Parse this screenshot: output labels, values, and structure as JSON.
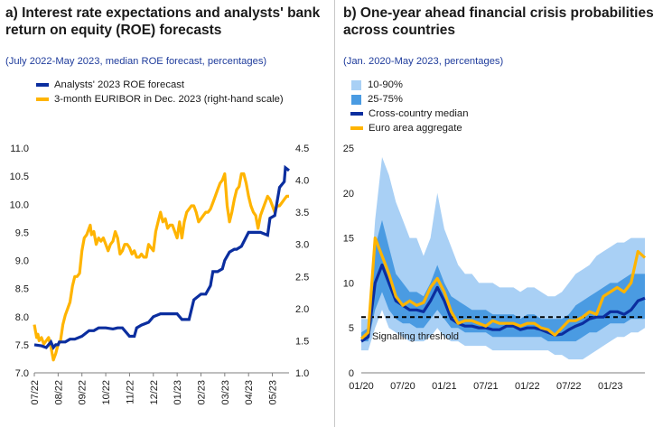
{
  "colors": {
    "dark_blue": "#0b2e9f",
    "yellow": "#ffb400",
    "band_outer": "#a9d0f5",
    "band_inner": "#4a9be2",
    "threshold": "#000000"
  },
  "chart_data": [
    {
      "type": "line",
      "panel_title": "a) Interest rate expectations and analysts' bank return on equity (ROE) forecasts",
      "subtitle": "(July 2022-May 2023, median ROE forecast, percentages)",
      "x_tick_labels": [
        "07/22",
        "08/22",
        "09/22",
        "10/22",
        "11/22",
        "12/22",
        "01/23",
        "02/23",
        "03/23",
        "04/23",
        "05/23"
      ],
      "y_left": {
        "ylim": [
          7.0,
          11.0
        ],
        "ticks": [
          "7.0",
          "7.5",
          "8.0",
          "8.5",
          "9.0",
          "9.5",
          "10.0",
          "10.5",
          "11.0"
        ]
      },
      "y_right": {
        "ylim": [
          1.0,
          4.5
        ],
        "ticks": [
          "1.0",
          "1.5",
          "2.0",
          "2.5",
          "3.0",
          "3.5",
          "4.0",
          "4.5"
        ]
      },
      "legend": [
        {
          "label": "Analysts' 2023 ROE forecast",
          "color": "#0b2e9f"
        },
        {
          "label": "3-month EURIBOR in Dec. 2023 (right-hand scale)",
          "color": "#ffb400"
        }
      ],
      "series": [
        {
          "name": "Analysts' 2023 ROE forecast",
          "axis": "left",
          "x": [
            0,
            0.3,
            0.5,
            0.7,
            0.8,
            0.9,
            1.0,
            1.05,
            1.3,
            1.5,
            1.7,
            2.0,
            2.3,
            2.5,
            2.7,
            3.0,
            3.3,
            3.5,
            3.7,
            4.0,
            4.2,
            4.3,
            4.5,
            4.8,
            5.0,
            5.3,
            5.5,
            5.7,
            6.0,
            6.2,
            6.5,
            6.7,
            7.0,
            7.2,
            7.4,
            7.5,
            7.7,
            7.9,
            8.0,
            8.2,
            8.4,
            8.5,
            8.7,
            9.0,
            9.3,
            9.5,
            9.8,
            9.9,
            10.1,
            10.3,
            10.5,
            10.55,
            10.7
          ],
          "values": [
            7.5,
            7.48,
            7.45,
            7.55,
            7.45,
            7.5,
            7.5,
            7.55,
            7.55,
            7.6,
            7.6,
            7.65,
            7.75,
            7.75,
            7.8,
            7.8,
            7.78,
            7.8,
            7.8,
            7.65,
            7.65,
            7.8,
            7.85,
            7.9,
            8.0,
            8.05,
            8.05,
            8.05,
            8.05,
            7.95,
            7.95,
            8.3,
            8.4,
            8.4,
            8.55,
            8.8,
            8.8,
            8.85,
            9.0,
            9.15,
            9.2,
            9.2,
            9.25,
            9.5,
            9.5,
            9.5,
            9.45,
            9.75,
            9.8,
            10.3,
            10.4,
            10.65,
            10.6
          ]
        },
        {
          "name": "3-month EURIBOR in Dec. 2023 (right-hand scale)",
          "axis": "right",
          "x": [
            0,
            0.05,
            0.1,
            0.15,
            0.2,
            0.3,
            0.4,
            0.5,
            0.6,
            0.7,
            0.8,
            0.85,
            0.9,
            1.0,
            1.1,
            1.2,
            1.3,
            1.4,
            1.5,
            1.6,
            1.7,
            1.8,
            1.9,
            2.0,
            2.1,
            2.2,
            2.3,
            2.35,
            2.4,
            2.5,
            2.6,
            2.7,
            2.8,
            2.9,
            3.0,
            3.1,
            3.2,
            3.3,
            3.4,
            3.5,
            3.6,
            3.7,
            3.8,
            3.9,
            4.0,
            4.1,
            4.2,
            4.3,
            4.4,
            4.5,
            4.6,
            4.7,
            4.8,
            4.9,
            5.0,
            5.1,
            5.2,
            5.3,
            5.4,
            5.5,
            5.6,
            5.7,
            5.8,
            5.9,
            6.0,
            6.1,
            6.2,
            6.3,
            6.4,
            6.5,
            6.6,
            6.7,
            6.8,
            6.9,
            7.0,
            7.1,
            7.2,
            7.3,
            7.4,
            7.5,
            7.6,
            7.7,
            7.8,
            7.9,
            8.0,
            8.1,
            8.2,
            8.3,
            8.4,
            8.5,
            8.6,
            8.7,
            8.8,
            8.9,
            9.0,
            9.1,
            9.2,
            9.3,
            9.4,
            9.5,
            9.6,
            9.7,
            9.8,
            9.9,
            10.0,
            10.1,
            10.2,
            10.3,
            10.4,
            10.5,
            10.6,
            10.7
          ],
          "values": [
            1.75,
            1.65,
            1.55,
            1.6,
            1.5,
            1.55,
            1.45,
            1.5,
            1.55,
            1.4,
            1.2,
            1.25,
            1.3,
            1.45,
            1.5,
            1.75,
            1.9,
            2.0,
            2.1,
            2.35,
            2.5,
            2.5,
            2.55,
            2.9,
            3.1,
            3.15,
            3.25,
            3.3,
            3.15,
            3.2,
            3.0,
            3.1,
            3.05,
            3.1,
            3.0,
            2.9,
            3.0,
            3.05,
            3.2,
            3.1,
            2.85,
            2.9,
            3.0,
            3.0,
            2.95,
            2.85,
            2.9,
            2.8,
            2.8,
            2.85,
            2.8,
            2.8,
            3.0,
            2.95,
            2.9,
            3.2,
            3.35,
            3.5,
            3.35,
            3.4,
            3.25,
            3.3,
            3.3,
            3.2,
            3.1,
            3.35,
            3.1,
            3.35,
            3.5,
            3.55,
            3.6,
            3.6,
            3.5,
            3.35,
            3.4,
            3.45,
            3.5,
            3.5,
            3.55,
            3.65,
            3.75,
            3.85,
            3.95,
            4.0,
            4.1,
            3.6,
            3.35,
            3.5,
            3.7,
            3.85,
            3.9,
            4.1,
            4.1,
            3.95,
            3.75,
            3.6,
            3.5,
            3.45,
            3.25,
            3.45,
            3.55,
            3.65,
            3.75,
            3.7,
            3.6,
            3.5,
            3.6,
            3.6,
            3.65,
            3.7,
            3.75,
            3.75
          ]
        }
      ]
    },
    {
      "type": "area",
      "panel_title": "b) One-year ahead financial crisis probabilities across countries",
      "subtitle": "(Jan. 2020-May 2023, percentages)",
      "x_tick_labels": [
        "01/20",
        "07/20",
        "01/21",
        "07/21",
        "01/22",
        "07/22",
        "01/23"
      ],
      "ylim": [
        0,
        25
      ],
      "y_ticks": [
        "0",
        "5",
        "10",
        "15",
        "20",
        "25"
      ],
      "legend": [
        {
          "label": "10-90%",
          "color": "#a9d0f5",
          "kind": "box"
        },
        {
          "label": "25-75%",
          "color": "#4a9be2",
          "kind": "box"
        },
        {
          "label": "Cross-country median",
          "color": "#0b2e9f",
          "kind": "line"
        },
        {
          "label": "Euro area aggregate",
          "color": "#ffb400",
          "kind": "line"
        }
      ],
      "threshold": {
        "label": "Signalling threshold",
        "value": 6.2
      },
      "x_months": [
        0,
        1,
        2,
        3,
        4,
        5,
        6,
        7,
        8,
        9,
        10,
        11,
        12,
        13,
        14,
        15,
        16,
        17,
        18,
        19,
        20,
        21,
        22,
        23,
        24,
        25,
        26,
        27,
        28,
        29,
        30,
        31,
        32,
        33,
        34,
        35,
        36,
        37,
        38,
        39,
        40,
        41
      ],
      "band_10_90_low": [
        2.5,
        2.5,
        5,
        7,
        5,
        4.5,
        4,
        3.5,
        3.5,
        3.5,
        4,
        5,
        4,
        3.5,
        3.5,
        3,
        3,
        3,
        3,
        2.5,
        2.5,
        2.5,
        2.5,
        2.5,
        2.5,
        2.5,
        2.5,
        2.5,
        2,
        2,
        1.5,
        1.5,
        1.5,
        2,
        2.5,
        3,
        3.5,
        4,
        4,
        4.5,
        4.5,
        5
      ],
      "band_10_90_high": [
        6,
        6,
        17,
        24,
        22,
        19,
        17,
        15,
        15,
        13,
        15,
        20,
        16,
        14,
        12,
        11,
        11,
        10,
        10,
        10,
        9.5,
        9.5,
        9.5,
        9,
        9.5,
        9.5,
        9,
        8.5,
        8.5,
        9,
        10,
        11,
        11.5,
        12,
        13,
        13.5,
        14,
        14.5,
        14.5,
        15,
        15,
        15
      ],
      "band_25_75_low": [
        3.5,
        3.5,
        7,
        9,
        7,
        6,
        5.5,
        5.5,
        5,
        5,
        6,
        7,
        6,
        5,
        5,
        4.5,
        4.5,
        4.5,
        4.5,
        4,
        4,
        4,
        4,
        4,
        4,
        4,
        4,
        3.5,
        3.5,
        3.5,
        3.5,
        3.5,
        4,
        4.5,
        4.5,
        5,
        5.5,
        5.5,
        5.5,
        6,
        6,
        6
      ],
      "band_25_75_high": [
        4.5,
        5,
        14,
        17,
        14,
        11,
        10,
        9,
        9,
        8.5,
        10,
        12,
        10,
        8.5,
        8,
        7.5,
        7,
        7,
        7,
        6.5,
        6.5,
        6.5,
        6.5,
        6,
        6.5,
        6.5,
        6,
        6,
        6,
        6,
        6.5,
        7.5,
        8,
        8.5,
        9,
        9.5,
        10,
        10,
        10.5,
        11,
        11,
        11
      ],
      "series": [
        {
          "name": "Cross-country median",
          "values": [
            3.5,
            4,
            10,
            12,
            10,
            8,
            7.5,
            7,
            7,
            6.8,
            8,
            9.5,
            8,
            6,
            5.5,
            5.2,
            5.2,
            5,
            5,
            4.8,
            4.8,
            5.2,
            5.2,
            4.8,
            5,
            5,
            4.8,
            4.5,
            4.2,
            4.3,
            4.8,
            5.2,
            5.5,
            6,
            6.2,
            6.2,
            6.8,
            6.8,
            6.5,
            7,
            8,
            8.3
          ]
        },
        {
          "name": "Euro area aggregate",
          "values": [
            3.8,
            4.5,
            15,
            13,
            11,
            8.5,
            7.5,
            8,
            7.5,
            7.8,
            9.5,
            10.5,
            9,
            6.8,
            5.5,
            5.8,
            5.8,
            5.5,
            5.2,
            5.8,
            5.5,
            5.5,
            5.5,
            5.2,
            5.5,
            5.5,
            5,
            4.8,
            4.2,
            5,
            5.8,
            5.8,
            6.2,
            6.8,
            6.5,
            8.5,
            9,
            9.5,
            9,
            10,
            13.5,
            12.8
          ]
        }
      ]
    }
  ]
}
